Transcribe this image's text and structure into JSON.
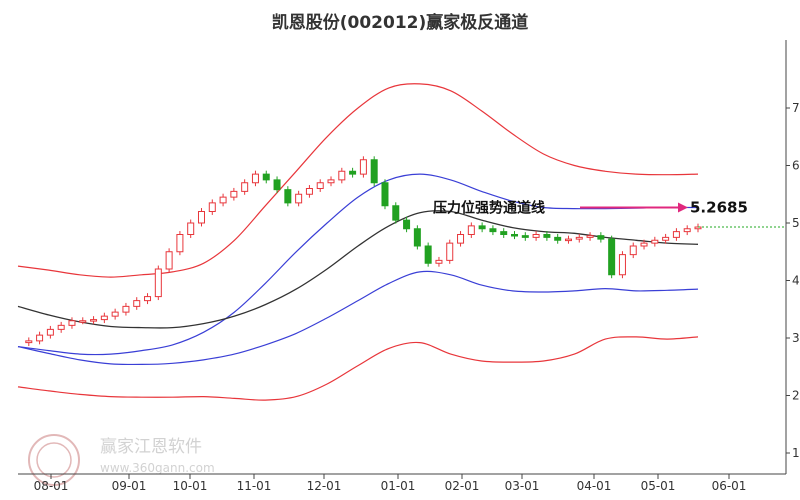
{
  "chart_data": {
    "type": "line",
    "title": "凯恩股份(002012)赢家极反通道",
    "x_ticks": [
      "08-01",
      "09-01",
      "10-01",
      "11-01",
      "12-01",
      "01-01",
      "02-01",
      "03-01",
      "04-01",
      "05-01",
      "06-01"
    ],
    "y_ticks": [
      1,
      2,
      3,
      4,
      5,
      6,
      7
    ],
    "ylim": [
      1,
      7.5
    ],
    "grid": false,
    "annotation": {
      "text": "压力位强势通道线",
      "value": "5.2685"
    },
    "watermark": {
      "name": "赢家江恩软件",
      "url": "www.360gann.com"
    },
    "series": [
      {
        "key": "red_upper",
        "color": "#e8363b",
        "values": [
          4.25,
          4.18,
          4.1,
          4.06,
          4.1,
          4.15,
          4.3,
          4.7,
          5.3,
          5.9,
          6.5,
          7.0,
          7.35,
          7.42,
          7.3,
          6.95,
          6.55,
          6.2,
          6.0,
          5.9,
          5.85,
          5.84,
          5.85
        ]
      },
      {
        "key": "blue_upper",
        "color": "#3a3fd6",
        "values": [
          2.85,
          2.78,
          2.72,
          2.72,
          2.78,
          2.88,
          3.1,
          3.45,
          3.95,
          4.5,
          5.0,
          5.45,
          5.75,
          5.85,
          5.75,
          5.55,
          5.38,
          5.27,
          5.25,
          5.25,
          5.26,
          5.27,
          5.27
        ]
      },
      {
        "key": "black_mid",
        "color": "#333333",
        "values": [
          3.55,
          3.4,
          3.28,
          3.2,
          3.18,
          3.18,
          3.25,
          3.38,
          3.58,
          3.85,
          4.2,
          4.6,
          4.95,
          5.18,
          5.2,
          5.05,
          4.92,
          4.85,
          4.82,
          4.75,
          4.7,
          4.65,
          4.63
        ]
      },
      {
        "key": "blue_lower",
        "color": "#3a3fd6",
        "values": [
          2.85,
          2.73,
          2.62,
          2.55,
          2.54,
          2.56,
          2.62,
          2.72,
          2.88,
          3.08,
          3.35,
          3.65,
          3.95,
          4.15,
          4.1,
          3.92,
          3.82,
          3.8,
          3.82,
          3.86,
          3.82,
          3.83,
          3.85
        ]
      },
      {
        "key": "red_lower",
        "color": "#e8363b",
        "values": [
          2.15,
          2.08,
          2.02,
          1.98,
          1.97,
          1.97,
          1.98,
          1.95,
          1.92,
          1.98,
          2.2,
          2.52,
          2.82,
          2.92,
          2.72,
          2.6,
          2.58,
          2.6,
          2.72,
          2.98,
          3.02,
          2.98,
          3.02
        ]
      }
    ],
    "price": [
      2.92,
      2.95,
      3.05,
      3.15,
      3.22,
      3.3,
      3.3,
      3.32,
      3.38,
      3.45,
      3.55,
      3.65,
      3.72,
      4.2,
      4.5,
      4.8,
      5.0,
      5.2,
      5.35,
      5.45,
      5.55,
      5.7,
      5.85,
      5.75,
      5.58,
      5.35,
      5.5,
      5.6,
      5.7,
      5.75,
      5.9,
      5.85,
      6.1,
      5.7,
      5.3,
      5.05,
      4.9,
      4.6,
      4.3,
      4.35,
      4.65,
      4.8,
      4.95,
      4.9,
      4.85,
      4.8,
      4.78,
      4.75,
      4.8,
      4.75,
      4.7,
      4.72,
      4.75,
      4.78,
      4.72,
      4.1,
      4.45,
      4.6,
      4.65,
      4.7,
      4.75,
      4.85,
      4.9,
      4.93
    ]
  }
}
